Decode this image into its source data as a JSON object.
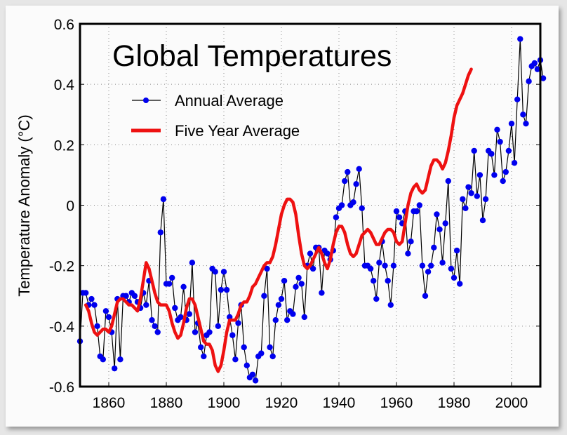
{
  "chart_data": {
    "type": "line",
    "title": "Global Temperatures",
    "xlabel": "",
    "ylabel": "Temperature Anomaly (°C)",
    "xlim": [
      1850,
      2010
    ],
    "ylim": [
      -0.6,
      0.6
    ],
    "xticks": [
      1860,
      1880,
      1900,
      1920,
      1940,
      1960,
      1980,
      2000
    ],
    "yticks": [
      0.6,
      0.4,
      0.2,
      0,
      -0.2,
      -0.4,
      -0.6
    ],
    "ytick_labels": [
      "0.6",
      "0.4",
      "0.2",
      "0",
      "-0.2",
      "-0.4",
      "-0.6"
    ],
    "grid": true,
    "legend_position": "top-left",
    "legend": [
      "Annual Average",
      "Five Year Average"
    ],
    "colors": {
      "annual_line": "#000000",
      "annual_marker": "#0000ee",
      "smooth": "#ee1111"
    },
    "x_start_year": 1850,
    "series": [
      {
        "name": "Annual Average",
        "values": [
          -0.45,
          -0.29,
          -0.29,
          -0.33,
          -0.31,
          -0.33,
          -0.4,
          -0.5,
          -0.51,
          -0.35,
          -0.37,
          -0.42,
          -0.54,
          -0.31,
          -0.51,
          -0.3,
          -0.3,
          -0.32,
          -0.29,
          -0.3,
          -0.32,
          -0.34,
          -0.29,
          -0.33,
          -0.25,
          -0.38,
          -0.4,
          -0.42,
          -0.09,
          0.02,
          -0.26,
          -0.26,
          -0.24,
          -0.34,
          -0.38,
          -0.37,
          -0.27,
          -0.38,
          -0.36,
          -0.19,
          -0.42,
          -0.39,
          -0.47,
          -0.5,
          -0.43,
          -0.42,
          -0.21,
          -0.22,
          -0.4,
          -0.28,
          -0.22,
          -0.28,
          -0.37,
          -0.43,
          -0.51,
          -0.39,
          -0.33,
          -0.47,
          -0.53,
          -0.57,
          -0.56,
          -0.58,
          -0.5,
          -0.49,
          -0.3,
          -0.21,
          -0.47,
          -0.5,
          -0.38,
          -0.33,
          -0.31,
          -0.25,
          -0.38,
          -0.35,
          -0.36,
          -0.27,
          -0.24,
          -0.26,
          -0.37,
          -0.2,
          -0.16,
          -0.21,
          -0.14,
          -0.14,
          -0.29,
          -0.15,
          -0.16,
          -0.18,
          -0.15,
          -0.04,
          -0.01,
          0.0,
          0.08,
          0.11,
          0.0,
          0.01,
          0.07,
          0.12,
          -0.01,
          -0.2,
          -0.2,
          -0.21,
          -0.25,
          -0.31,
          -0.19,
          -0.12,
          -0.2,
          -0.25,
          -0.33,
          -0.2,
          -0.02,
          -0.04,
          -0.06,
          -0.02,
          -0.16,
          -0.12,
          -0.02,
          -0.02,
          0.0,
          -0.2,
          -0.3,
          -0.22,
          -0.2,
          -0.14,
          -0.03,
          -0.08,
          -0.19,
          -0.06,
          0.08,
          -0.21,
          -0.24,
          -0.15,
          -0.26,
          0.02,
          -0.01,
          0.06,
          0.04,
          0.18,
          0.03,
          0.1,
          -0.05,
          0.02,
          0.18,
          0.17,
          0.1,
          0.25,
          0.21,
          0.08,
          0.11,
          0.18,
          0.27,
          0.14,
          0.35,
          0.55,
          0.3,
          0.27,
          0.41,
          0.46,
          0.47,
          0.45,
          0.48,
          0.42
        ]
      },
      {
        "name": "Five Year Average",
        "x_start_year": 1852,
        "values": [
          -0.33,
          -0.35,
          -0.39,
          -0.42,
          -0.43,
          -0.42,
          -0.41,
          -0.41,
          -0.42,
          -0.4,
          -0.36,
          -0.32,
          -0.31,
          -0.31,
          -0.32,
          -0.33,
          -0.33,
          -0.34,
          -0.35,
          -0.31,
          -0.25,
          -0.19,
          -0.21,
          -0.25,
          -0.29,
          -0.32,
          -0.33,
          -0.33,
          -0.33,
          -0.35,
          -0.39,
          -0.42,
          -0.44,
          -0.43,
          -0.39,
          -0.34,
          -0.31,
          -0.31,
          -0.33,
          -0.37,
          -0.41,
          -0.45,
          -0.46,
          -0.46,
          -0.48,
          -0.53,
          -0.55,
          -0.53,
          -0.48,
          -0.42,
          -0.38,
          -0.38,
          -0.38,
          -0.36,
          -0.33,
          -0.32,
          -0.32,
          -0.3,
          -0.27,
          -0.26,
          -0.24,
          -0.22,
          -0.2,
          -0.19,
          -0.19,
          -0.17,
          -0.13,
          -0.08,
          -0.03,
          0.0,
          0.02,
          0.02,
          0.01,
          -0.03,
          -0.1,
          -0.16,
          -0.2,
          -0.21,
          -0.2,
          -0.18,
          -0.16,
          -0.14,
          -0.16,
          -0.19,
          -0.21,
          -0.18,
          -0.13,
          -0.09,
          -0.07,
          -0.07,
          -0.09,
          -0.13,
          -0.16,
          -0.17,
          -0.16,
          -0.13,
          -0.1,
          -0.09,
          -0.08,
          -0.09,
          -0.11,
          -0.13,
          -0.13,
          -0.11,
          -0.09,
          -0.08,
          -0.08,
          -0.09,
          -0.12,
          -0.13,
          -0.12,
          -0.06,
          0.0,
          0.04,
          0.06,
          0.07,
          0.05,
          0.04,
          0.05,
          0.09,
          0.13,
          0.15,
          0.15,
          0.14,
          0.12,
          0.14,
          0.18,
          0.23,
          0.29,
          0.33,
          0.35,
          0.37,
          0.4,
          0.43,
          0.45
        ]
      }
    ]
  }
}
